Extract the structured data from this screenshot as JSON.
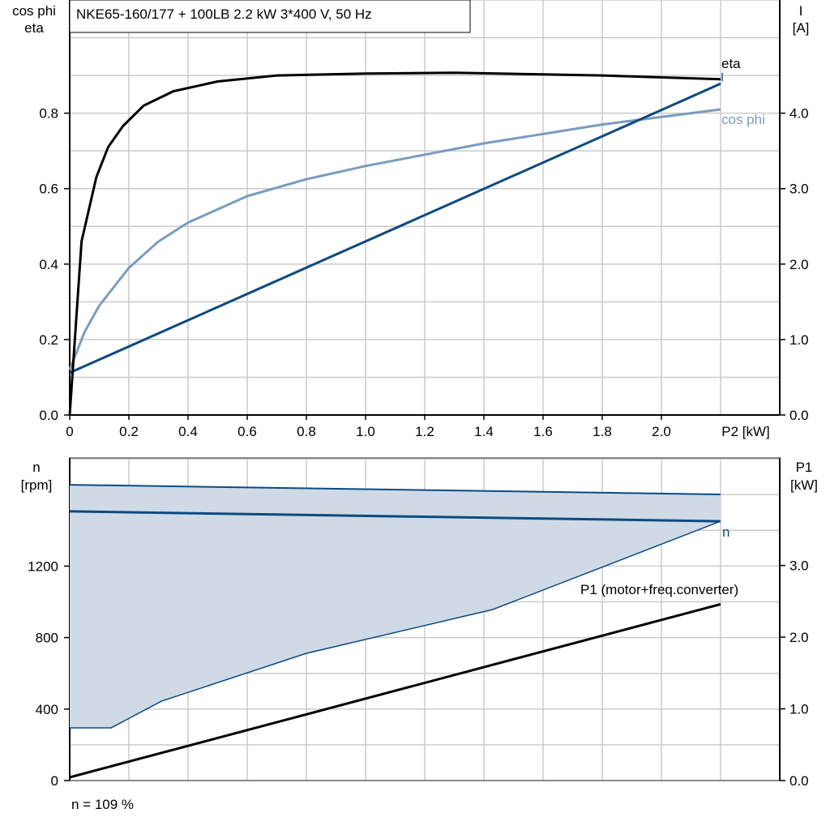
{
  "title": "NKE65-160/177 + 100LB   2.2 kW   3*400 V, 50 Hz",
  "footer": "n = 109 %",
  "colors": {
    "eta": "#000000",
    "cos_phi": "#7a9cbf",
    "I": "#0d4a80",
    "n": "#0d4a80",
    "n_region": "#cfdae6",
    "P1": "#000000",
    "grid": "#cccccc"
  },
  "chart_data": [
    {
      "type": "line",
      "xlabel": "P2 [kW]",
      "ylabel_left": [
        "cos phi",
        "eta"
      ],
      "ylabel_right": [
        "I",
        "[A]"
      ],
      "xlim": [
        0,
        2.4
      ],
      "ylim_left": [
        0,
        1.1
      ],
      "ylim_right": [
        0,
        5.5
      ],
      "x_ticks": [
        "0",
        "0.2",
        "0.4",
        "0.6",
        "0.8",
        "1.0",
        "1.2",
        "1.4",
        "1.6",
        "1.8",
        "2.0"
      ],
      "y_left_ticks": [
        "0.0",
        "0.2",
        "0.4",
        "0.6",
        "0.8"
      ],
      "y_right_ticks": [
        "0.0",
        "1.0",
        "2.0",
        "3.0",
        "4.0"
      ],
      "grid": true,
      "series": [
        {
          "name": "eta",
          "axis": "left",
          "x": [
            0,
            0.04,
            0.09,
            0.13,
            0.18,
            0.25,
            0.35,
            0.5,
            0.7,
            1.0,
            1.3,
            1.8,
            2.2
          ],
          "y": [
            0,
            0.46,
            0.63,
            0.71,
            0.766,
            0.82,
            0.858,
            0.884,
            0.9,
            0.905,
            0.907,
            0.9,
            0.89
          ]
        },
        {
          "name": "cos phi",
          "axis": "left",
          "x": [
            0,
            0.05,
            0.1,
            0.2,
            0.3,
            0.4,
            0.6,
            0.8,
            1.0,
            1.4,
            1.8,
            2.2
          ],
          "y": [
            0.12,
            0.22,
            0.29,
            0.39,
            0.46,
            0.51,
            0.58,
            0.625,
            0.66,
            0.72,
            0.77,
            0.81
          ]
        },
        {
          "name": "I",
          "axis": "right",
          "x": [
            0,
            2.2
          ],
          "y": [
            0.56,
            4.39
          ]
        }
      ]
    },
    {
      "type": "area",
      "xlabel": "",
      "ylabel_left": [
        "n",
        "[rpm]"
      ],
      "ylabel_right": [
        "P1",
        "[kW]"
      ],
      "xlim": [
        0,
        2.4
      ],
      "ylim_left": [
        0,
        1805
      ],
      "ylim_right": [
        0,
        4.5
      ],
      "y_left_ticks": [
        "0",
        "400",
        "800",
        "1200"
      ],
      "y_right_ticks": [
        "0.0",
        "1.0",
        "2.0",
        "3.0"
      ],
      "grid": true,
      "n_region": {
        "x_upper": [
          0,
          2.2
        ],
        "upper": [
          1655,
          1601
        ],
        "x_lower": [
          0,
          0.14,
          0.31,
          0.8,
          1.43,
          2.2
        ],
        "lower": [
          295,
          295,
          444,
          712,
          957,
          1451
        ]
      },
      "series": [
        {
          "name": "n",
          "axis": "left",
          "x": [
            0,
            2.2
          ],
          "y": [
            1506,
            1451
          ]
        },
        {
          "name": "P1 (motor+freq.converter)",
          "axis": "right",
          "x": [
            0,
            2.2
          ],
          "y": [
            0.045,
            2.46
          ]
        }
      ]
    }
  ]
}
